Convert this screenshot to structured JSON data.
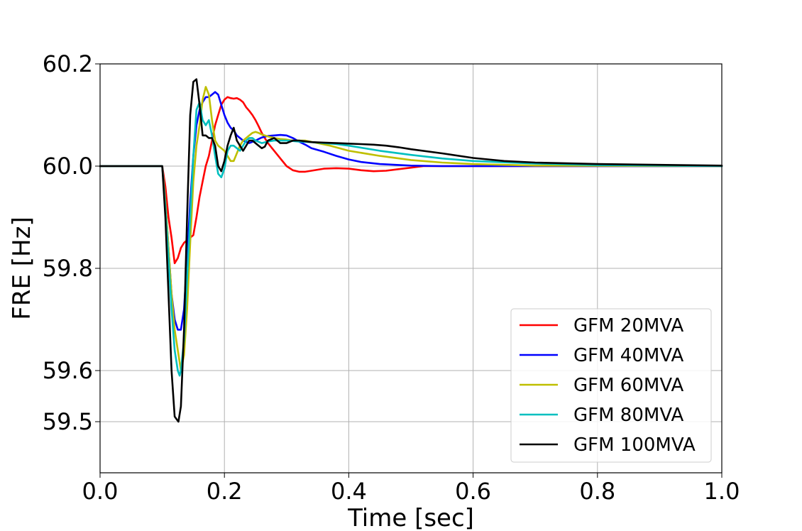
{
  "chart_data": {
    "type": "line",
    "title": "",
    "xlabel": "Time [sec]",
    "ylabel": "FRE [Hz]",
    "xlim": [
      0.0,
      1.0
    ],
    "ylim": [
      59.4,
      60.2
    ],
    "xticks": [
      "0.0",
      "0.2",
      "0.4",
      "0.6",
      "0.8",
      "1.0"
    ],
    "xtick_values": [
      0.0,
      0.2,
      0.4,
      0.6,
      0.8,
      1.0
    ],
    "yticks": [
      "59.5",
      "59.6",
      "59.8",
      "60.0",
      "60.2"
    ],
    "ytick_values": [
      59.5,
      59.6,
      59.8,
      60.0,
      60.2
    ],
    "grid": true,
    "legend_position": "lower-right",
    "series": [
      {
        "name": "GFM 20MVA",
        "color": "#ff0000",
        "x": [
          0.0,
          0.1,
          0.105,
          0.11,
          0.115,
          0.12,
          0.125,
          0.13,
          0.135,
          0.14,
          0.145,
          0.15,
          0.155,
          0.16,
          0.165,
          0.17,
          0.175,
          0.18,
          0.185,
          0.19,
          0.195,
          0.2,
          0.205,
          0.21,
          0.215,
          0.22,
          0.225,
          0.23,
          0.235,
          0.24,
          0.245,
          0.25,
          0.255,
          0.26,
          0.265,
          0.27,
          0.28,
          0.29,
          0.3,
          0.31,
          0.32,
          0.33,
          0.34,
          0.36,
          0.38,
          0.4,
          0.42,
          0.44,
          0.46,
          0.48,
          0.5,
          0.52,
          0.55,
          0.6,
          0.7,
          0.8,
          1.0
        ],
        "y": [
          60.0,
          60.0,
          59.96,
          59.9,
          59.86,
          59.81,
          59.82,
          59.84,
          59.85,
          59.855,
          59.86,
          59.865,
          59.9,
          59.94,
          59.97,
          60.0,
          60.02,
          60.05,
          60.08,
          60.1,
          60.12,
          60.13,
          60.135,
          60.133,
          60.132,
          60.133,
          60.13,
          60.125,
          60.115,
          60.108,
          60.1,
          60.09,
          60.078,
          60.065,
          60.055,
          60.045,
          60.03,
          60.015,
          60.0,
          59.992,
          59.989,
          59.989,
          59.991,
          59.995,
          59.996,
          59.995,
          59.992,
          59.99,
          59.991,
          59.994,
          59.997,
          60.0,
          60.0,
          60.0,
          60.0,
          60.0,
          60.0
        ]
      },
      {
        "name": "GFM 40MVA",
        "color": "#0000ff",
        "x": [
          0.0,
          0.1,
          0.105,
          0.11,
          0.115,
          0.12,
          0.125,
          0.13,
          0.135,
          0.14,
          0.145,
          0.15,
          0.155,
          0.16,
          0.165,
          0.17,
          0.175,
          0.18,
          0.185,
          0.19,
          0.195,
          0.2,
          0.205,
          0.21,
          0.215,
          0.22,
          0.23,
          0.24,
          0.25,
          0.26,
          0.27,
          0.28,
          0.29,
          0.3,
          0.31,
          0.32,
          0.33,
          0.34,
          0.36,
          0.38,
          0.4,
          0.42,
          0.45,
          0.5,
          0.55,
          0.6,
          0.7,
          1.0
        ],
        "y": [
          60.0,
          60.0,
          59.93,
          59.84,
          59.75,
          59.7,
          59.68,
          59.68,
          59.72,
          59.82,
          59.93,
          60.02,
          60.08,
          60.11,
          60.125,
          60.135,
          60.135,
          60.14,
          60.145,
          60.14,
          60.12,
          60.1,
          60.085,
          60.075,
          60.07,
          60.06,
          60.05,
          60.045,
          60.05,
          60.056,
          60.059,
          60.06,
          60.061,
          60.06,
          60.055,
          60.048,
          60.042,
          60.035,
          60.028,
          60.02,
          60.013,
          60.008,
          60.004,
          60.001,
          60.0,
          60.0,
          60.0,
          60.0
        ]
      },
      {
        "name": "GFM 60MVA",
        "color": "#bfbf00",
        "x": [
          0.0,
          0.1,
          0.105,
          0.11,
          0.115,
          0.12,
          0.125,
          0.13,
          0.135,
          0.14,
          0.145,
          0.15,
          0.155,
          0.16,
          0.165,
          0.17,
          0.175,
          0.18,
          0.185,
          0.19,
          0.195,
          0.2,
          0.205,
          0.21,
          0.215,
          0.22,
          0.225,
          0.23,
          0.235,
          0.24,
          0.245,
          0.25,
          0.255,
          0.26,
          0.27,
          0.28,
          0.29,
          0.3,
          0.31,
          0.32,
          0.33,
          0.35,
          0.37,
          0.4,
          0.45,
          0.5,
          0.55,
          0.6,
          0.7,
          1.0
        ],
        "y": [
          60.0,
          60.0,
          59.93,
          59.84,
          59.75,
          59.68,
          59.64,
          59.6,
          59.63,
          59.72,
          59.85,
          59.97,
          60.04,
          60.08,
          60.13,
          60.155,
          60.14,
          60.09,
          60.05,
          60.04,
          60.035,
          60.03,
          60.02,
          60.01,
          60.01,
          60.025,
          60.04,
          60.05,
          60.055,
          60.06,
          60.065,
          60.067,
          60.065,
          60.062,
          60.058,
          60.055,
          60.053,
          60.052,
          60.05,
          60.05,
          60.05,
          60.045,
          60.04,
          60.03,
          60.02,
          60.012,
          60.007,
          60.004,
          60.001,
          60.0
        ]
      },
      {
        "name": "GFM 80MVA",
        "color": "#00bfbf",
        "x": [
          0.0,
          0.1,
          0.105,
          0.11,
          0.115,
          0.12,
          0.125,
          0.128,
          0.13,
          0.135,
          0.14,
          0.145,
          0.15,
          0.155,
          0.16,
          0.165,
          0.17,
          0.175,
          0.18,
          0.185,
          0.19,
          0.195,
          0.2,
          0.205,
          0.21,
          0.215,
          0.22,
          0.225,
          0.23,
          0.235,
          0.24,
          0.245,
          0.25,
          0.26,
          0.27,
          0.28,
          0.29,
          0.3,
          0.32,
          0.34,
          0.36,
          0.38,
          0.4,
          0.45,
          0.5,
          0.55,
          0.6,
          0.7,
          0.8,
          1.0
        ],
        "y": [
          60.0,
          60.0,
          59.92,
          59.82,
          59.72,
          59.64,
          59.6,
          59.59,
          59.6,
          59.66,
          59.78,
          59.9,
          60.02,
          60.11,
          60.125,
          60.09,
          60.08,
          60.09,
          60.06,
          60.02,
          59.985,
          59.978,
          59.995,
          60.03,
          60.04,
          60.04,
          60.035,
          60.03,
          60.04,
          60.05,
          60.055,
          60.055,
          60.05,
          60.045,
          60.048,
          60.05,
          60.05,
          60.05,
          60.048,
          60.047,
          60.045,
          60.043,
          60.04,
          60.03,
          60.022,
          60.015,
          60.01,
          60.005,
          60.002,
          60.0
        ]
      },
      {
        "name": "GFM 100MVA",
        "color": "#000000",
        "x": [
          0.0,
          0.1,
          0.105,
          0.11,
          0.115,
          0.12,
          0.123,
          0.126,
          0.13,
          0.135,
          0.14,
          0.145,
          0.15,
          0.155,
          0.16,
          0.165,
          0.17,
          0.175,
          0.18,
          0.185,
          0.19,
          0.195,
          0.2,
          0.205,
          0.21,
          0.215,
          0.22,
          0.225,
          0.23,
          0.235,
          0.24,
          0.245,
          0.25,
          0.255,
          0.26,
          0.265,
          0.27,
          0.28,
          0.29,
          0.3,
          0.31,
          0.32,
          0.34,
          0.36,
          0.38,
          0.4,
          0.42,
          0.44,
          0.46,
          0.48,
          0.5,
          0.55,
          0.6,
          0.65,
          0.7,
          0.8,
          1.0
        ],
        "y": [
          60.0,
          60.0,
          59.9,
          59.75,
          59.6,
          59.51,
          59.505,
          59.5,
          59.53,
          59.68,
          59.9,
          60.1,
          60.165,
          60.17,
          60.12,
          60.06,
          60.06,
          60.055,
          60.055,
          60.04,
          60.0,
          59.99,
          60.01,
          60.04,
          60.06,
          60.075,
          60.05,
          60.04,
          60.03,
          60.04,
          60.05,
          60.05,
          60.045,
          60.04,
          60.035,
          60.038,
          60.05,
          60.055,
          60.045,
          60.045,
          60.05,
          60.05,
          60.047,
          60.046,
          60.045,
          60.044,
          60.043,
          60.042,
          60.04,
          60.037,
          60.033,
          60.025,
          60.016,
          60.01,
          60.007,
          60.004,
          60.001
        ]
      }
    ]
  }
}
